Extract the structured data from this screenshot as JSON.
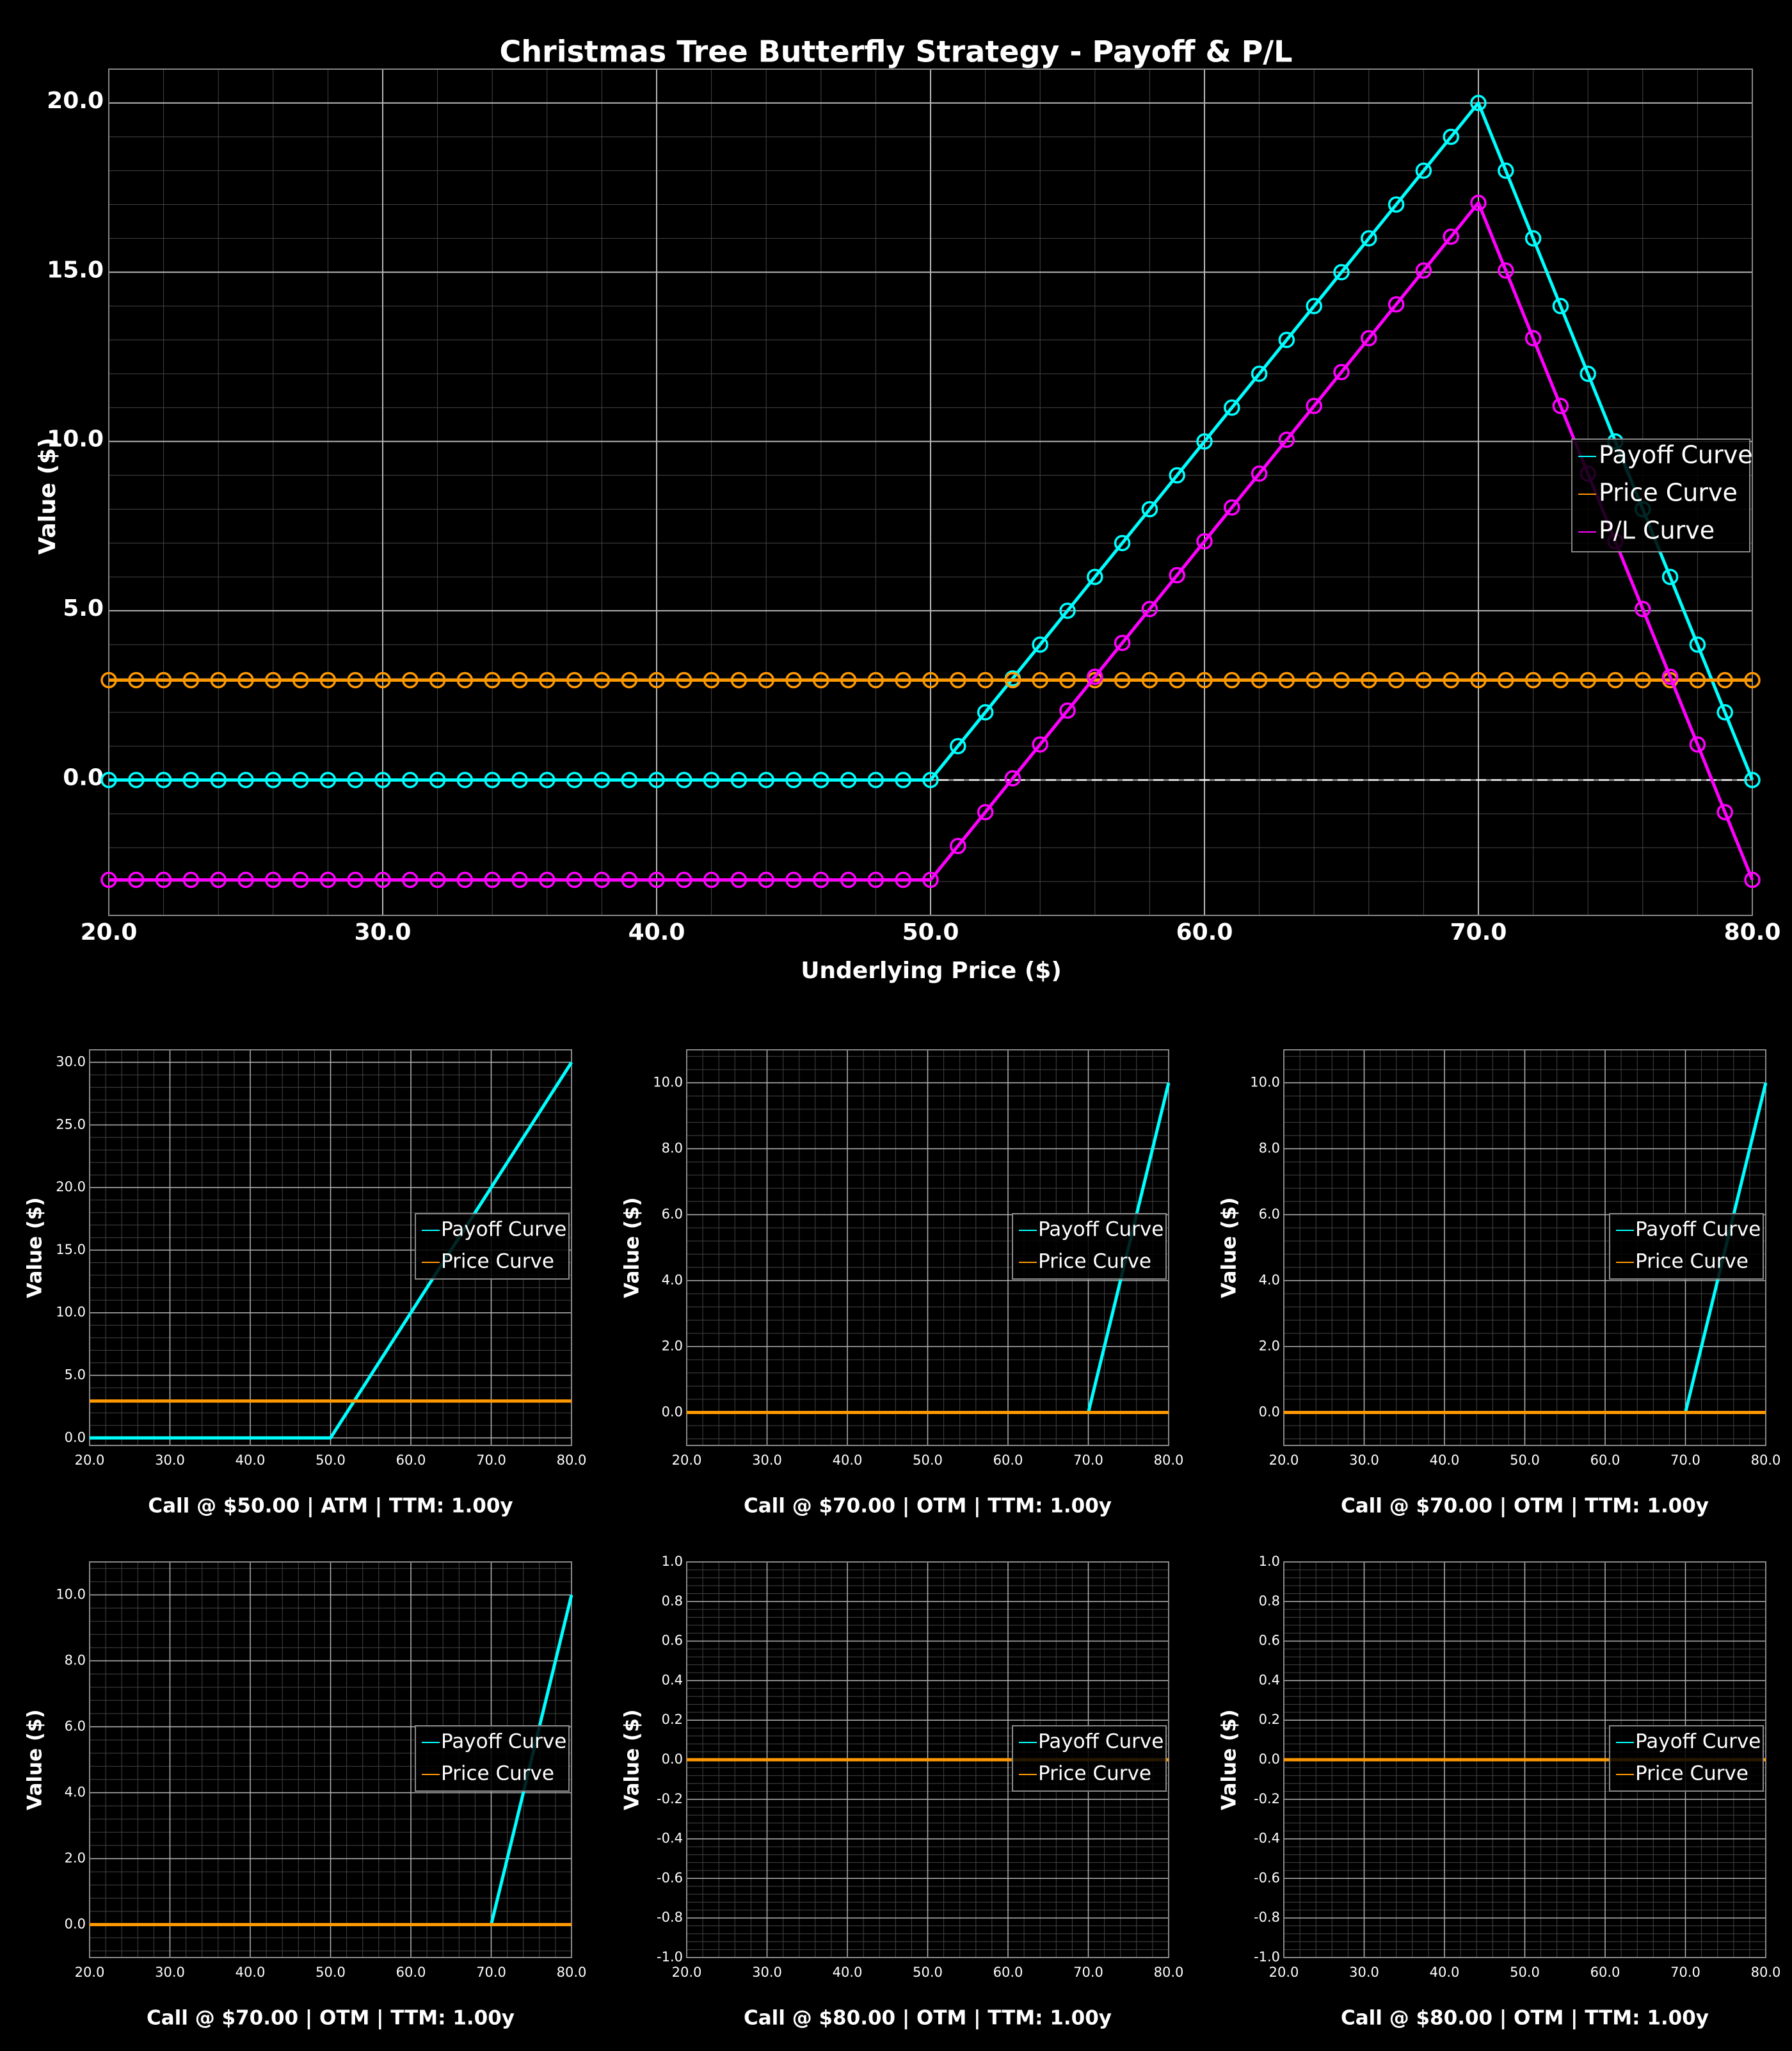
{
  "chart_data": [
    {
      "type": "line",
      "title": "Christmas Tree Butterfly Strategy - Payoff & P/L",
      "xlabel": "Underlying Price ($)",
      "ylabel": "Value ($)",
      "xlim": [
        20,
        80
      ],
      "ylim": [
        -4,
        21
      ],
      "xticks": [
        "20.0",
        "30.0",
        "40.0",
        "50.0",
        "60.0",
        "70.0",
        "80.0"
      ],
      "yticks": [
        "0.0",
        "5.0",
        "10.0",
        "15.0",
        "20.0"
      ],
      "grid": true,
      "legend_position": "right",
      "zero_line": true,
      "series": [
        {
          "name": "Payoff Curve",
          "color": "#00ffff",
          "markers": true,
          "x": [
            20,
            50,
            70,
            80
          ],
          "y": [
            0,
            0,
            20,
            0
          ]
        },
        {
          "name": "Price Curve",
          "color": "#ff9900",
          "markers": true,
          "x": [
            20,
            80
          ],
          "y": [
            2.95,
            2.95
          ]
        },
        {
          "name": "P/L Curve",
          "color": "#ff00ff",
          "markers": true,
          "x": [
            20,
            50,
            70,
            80
          ],
          "y": [
            -2.95,
            -2.95,
            17.05,
            -2.95
          ]
        }
      ]
    },
    {
      "type": "line",
      "title": "Call @ $50.00 | ATM | TTM: 1.00y",
      "ylabel": "Value ($)",
      "xlim": [
        20,
        80
      ],
      "ylim": [
        -0.6,
        31
      ],
      "xticks": [
        "20.0",
        "30.0",
        "40.0",
        "50.0",
        "60.0",
        "70.0",
        "80.0"
      ],
      "yticks": [
        "0.0",
        "5.0",
        "10.0",
        "15.0",
        "20.0",
        "25.0",
        "30.0"
      ],
      "grid": true,
      "legend_position": "right",
      "series": [
        {
          "name": "Payoff Curve",
          "color": "#00ffff",
          "x": [
            20,
            50,
            80
          ],
          "y": [
            0,
            0,
            30
          ]
        },
        {
          "name": "Price Curve",
          "color": "#ff9900",
          "x": [
            20,
            80
          ],
          "y": [
            2.95,
            2.95
          ]
        }
      ]
    },
    {
      "type": "line",
      "title": "Call @ $70.00 | OTM | TTM: 1.00y",
      "ylabel": "Value ($)",
      "xlim": [
        20,
        80
      ],
      "ylim": [
        -1,
        11
      ],
      "xticks": [
        "20.0",
        "30.0",
        "40.0",
        "50.0",
        "60.0",
        "70.0",
        "80.0"
      ],
      "yticks": [
        "0.0",
        "2.0",
        "4.0",
        "6.0",
        "8.0",
        "10.0"
      ],
      "grid": true,
      "legend_position": "right",
      "series": [
        {
          "name": "Payoff Curve",
          "color": "#00ffff",
          "x": [
            20,
            70,
            80
          ],
          "y": [
            0,
            0,
            10
          ]
        },
        {
          "name": "Price Curve",
          "color": "#ff9900",
          "x": [
            20,
            80
          ],
          "y": [
            0,
            0
          ]
        }
      ]
    },
    {
      "type": "line",
      "title": "Call @ $70.00 | OTM | TTM: 1.00y",
      "ylabel": "Value ($)",
      "xlim": [
        20,
        80
      ],
      "ylim": [
        -1,
        11
      ],
      "xticks": [
        "20.0",
        "30.0",
        "40.0",
        "50.0",
        "60.0",
        "70.0",
        "80.0"
      ],
      "yticks": [
        "0.0",
        "2.0",
        "4.0",
        "6.0",
        "8.0",
        "10.0"
      ],
      "grid": true,
      "legend_position": "right",
      "series": [
        {
          "name": "Payoff Curve",
          "color": "#00ffff",
          "x": [
            20,
            70,
            80
          ],
          "y": [
            0,
            0,
            10
          ]
        },
        {
          "name": "Price Curve",
          "color": "#ff9900",
          "x": [
            20,
            80
          ],
          "y": [
            0,
            0
          ]
        }
      ]
    },
    {
      "type": "line",
      "title": "Call @ $70.00 | OTM | TTM: 1.00y",
      "ylabel": "Value ($)",
      "xlim": [
        20,
        80
      ],
      "ylim": [
        -1,
        11
      ],
      "xticks": [
        "20.0",
        "30.0",
        "40.0",
        "50.0",
        "60.0",
        "70.0",
        "80.0"
      ],
      "yticks": [
        "0.0",
        "2.0",
        "4.0",
        "6.0",
        "8.0",
        "10.0"
      ],
      "grid": true,
      "legend_position": "right",
      "series": [
        {
          "name": "Payoff Curve",
          "color": "#00ffff",
          "x": [
            20,
            70,
            80
          ],
          "y": [
            0,
            0,
            10
          ]
        },
        {
          "name": "Price Curve",
          "color": "#ff9900",
          "x": [
            20,
            80
          ],
          "y": [
            0,
            0
          ]
        }
      ]
    },
    {
      "type": "line",
      "title": "Call @ $80.00 | OTM | TTM: 1.00y",
      "ylabel": "Value ($)",
      "xlim": [
        20,
        80
      ],
      "ylim": [
        -1,
        1
      ],
      "xticks": [
        "20.0",
        "30.0",
        "40.0",
        "50.0",
        "60.0",
        "70.0",
        "80.0"
      ],
      "yticks": [
        "-1.0",
        "-0.8",
        "-0.6",
        "-0.4",
        "-0.2",
        "0.0",
        "0.2",
        "0.4",
        "0.6",
        "0.8",
        "1.0"
      ],
      "grid": true,
      "legend_position": "right",
      "series": [
        {
          "name": "Payoff Curve",
          "color": "#00ffff",
          "x": [
            20,
            80
          ],
          "y": [
            0,
            0
          ]
        },
        {
          "name": "Price Curve",
          "color": "#ff9900",
          "x": [
            20,
            80
          ],
          "y": [
            0,
            0
          ]
        }
      ]
    },
    {
      "type": "line",
      "title": "Call @ $80.00 | OTM | TTM: 1.00y",
      "ylabel": "Value ($)",
      "xlim": [
        20,
        80
      ],
      "ylim": [
        -1,
        1
      ],
      "xticks": [
        "20.0",
        "30.0",
        "40.0",
        "50.0",
        "60.0",
        "70.0",
        "80.0"
      ],
      "yticks": [
        "-1.0",
        "-0.8",
        "-0.6",
        "-0.4",
        "-0.2",
        "0.0",
        "0.2",
        "0.4",
        "0.6",
        "0.8",
        "1.0"
      ],
      "grid": true,
      "legend_position": "right",
      "series": [
        {
          "name": "Payoff Curve",
          "color": "#00ffff",
          "x": [
            20,
            80
          ],
          "y": [
            0,
            0
          ]
        },
        {
          "name": "Price Curve",
          "color": "#ff9900",
          "x": [
            20,
            80
          ],
          "y": [
            0,
            0
          ]
        }
      ]
    }
  ]
}
